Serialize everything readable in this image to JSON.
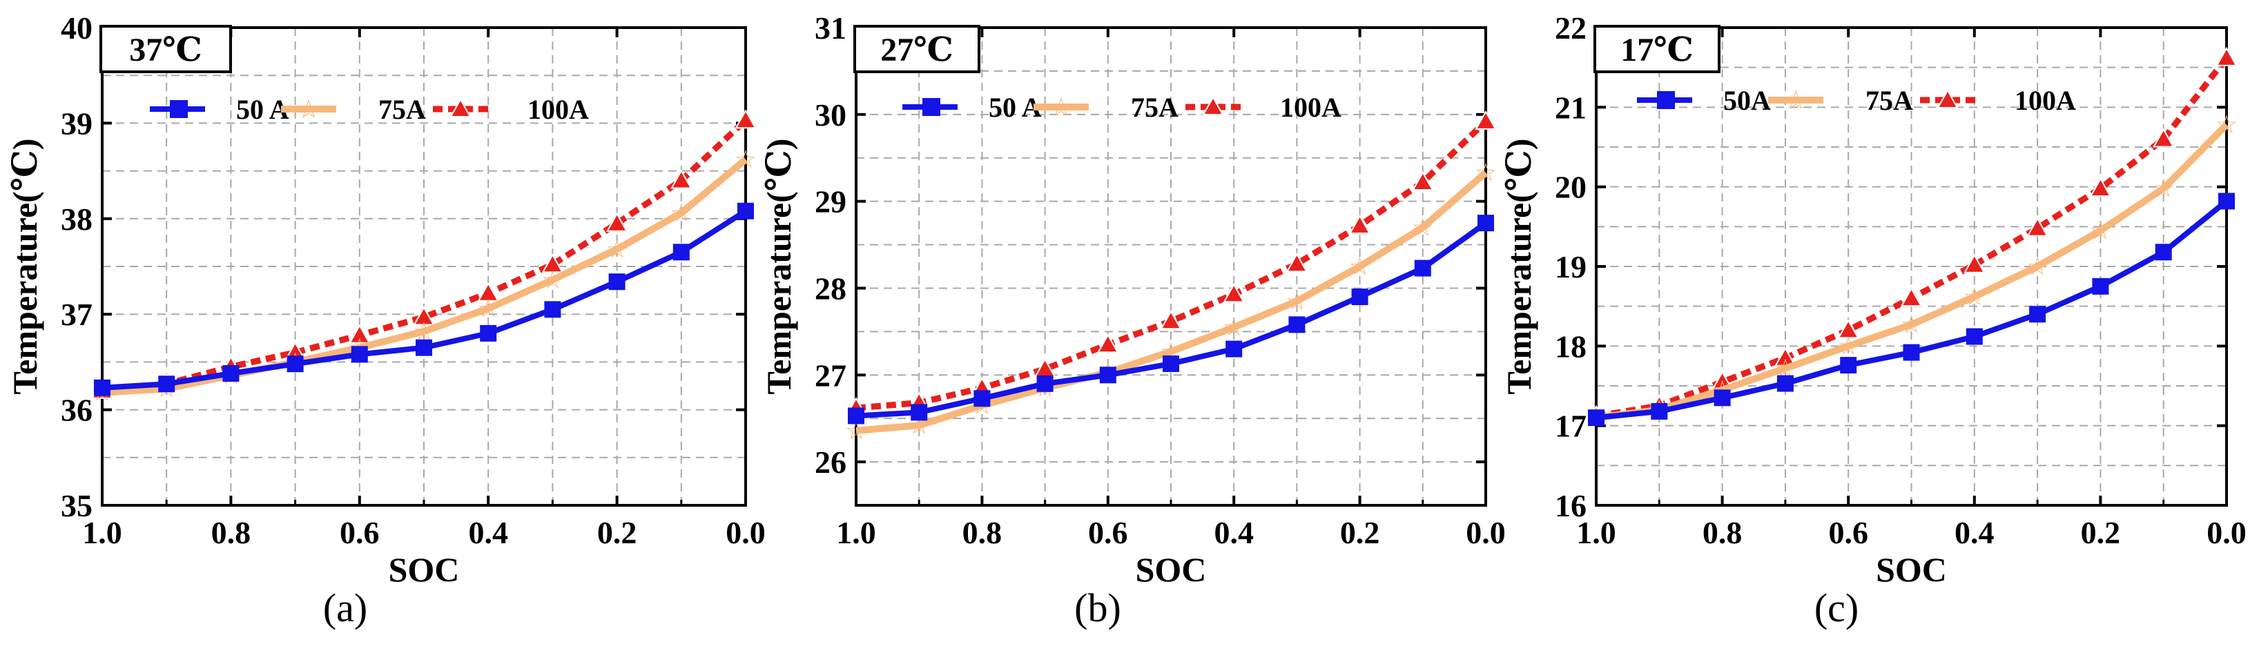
{
  "colors": {
    "s50": "#1414e6",
    "s75": "#f7b77a",
    "s100": "#e8201c"
  },
  "chart_data": [
    {
      "type": "line",
      "panel_label": "(a)",
      "temperature_label": "37℃",
      "xlabel": "SOC",
      "ylabel": "Temperature(℃)",
      "xlim": [
        1.0,
        0.0
      ],
      "ylim": [
        35,
        40
      ],
      "x_ticks": [
        "1.0",
        "0.8",
        "0.6",
        "0.4",
        "0.2",
        "0.0"
      ],
      "y_ticks": [
        "35",
        "36",
        "37",
        "38",
        "39",
        "40"
      ],
      "x": [
        1.0,
        0.9,
        0.8,
        0.7,
        0.6,
        0.5,
        0.4,
        0.3,
        0.2,
        0.1,
        0.0
      ],
      "series": [
        {
          "name": "50 A",
          "values": [
            36.23,
            36.27,
            36.38,
            36.48,
            36.58,
            36.65,
            36.8,
            37.05,
            37.34,
            37.65,
            38.08
          ]
        },
        {
          "name": "75A",
          "values": [
            36.18,
            36.22,
            36.36,
            36.5,
            36.65,
            36.82,
            37.06,
            37.36,
            37.68,
            38.06,
            38.62
          ]
        },
        {
          "name": "100A",
          "values": [
            36.2,
            36.27,
            36.45,
            36.6,
            36.78,
            36.97,
            37.22,
            37.52,
            37.95,
            38.4,
            39.03
          ]
        }
      ]
    },
    {
      "type": "line",
      "panel_label": "(b)",
      "temperature_label": "27℃",
      "xlabel": "SOC",
      "ylabel": "Temperature(℃)",
      "xlim": [
        1.0,
        0.0
      ],
      "ylim": [
        25.5,
        31
      ],
      "x_ticks": [
        "1.0",
        "0.8",
        "0.6",
        "0.4",
        "0.2",
        "0.0"
      ],
      "y_ticks": [
        "26",
        "27",
        "28",
        "29",
        "30",
        "31"
      ],
      "x": [
        1.0,
        0.9,
        0.8,
        0.7,
        0.6,
        0.5,
        0.4,
        0.3,
        0.2,
        0.1,
        0.0
      ],
      "series": [
        {
          "name": "50 A",
          "values": [
            26.53,
            26.57,
            26.73,
            26.9,
            27.0,
            27.13,
            27.3,
            27.58,
            27.9,
            28.23,
            28.75
          ]
        },
        {
          "name": "75A",
          "values": [
            26.36,
            26.42,
            26.65,
            26.85,
            27.03,
            27.27,
            27.55,
            27.85,
            28.25,
            28.7,
            29.33
          ]
        },
        {
          "name": "100A",
          "values": [
            26.62,
            26.68,
            26.85,
            27.07,
            27.35,
            27.62,
            27.93,
            28.28,
            28.72,
            29.22,
            29.92
          ]
        }
      ]
    },
    {
      "type": "line",
      "panel_label": "(c)",
      "temperature_label": "17℃",
      "xlabel": "SOC",
      "ylabel": "Temperature(℃)",
      "xlim": [
        1.0,
        0.0
      ],
      "ylim": [
        16,
        22
      ],
      "x_ticks": [
        "1.0",
        "0.8",
        "0.6",
        "0.4",
        "0.2",
        "0.0"
      ],
      "y_ticks": [
        "16",
        "17",
        "18",
        "19",
        "20",
        "21",
        "22"
      ],
      "x": [
        1.0,
        0.9,
        0.8,
        0.7,
        0.6,
        0.5,
        0.4,
        0.3,
        0.2,
        0.1,
        0.0
      ],
      "series": [
        {
          "name": "50A",
          "values": [
            17.1,
            17.18,
            17.35,
            17.53,
            17.76,
            17.92,
            18.12,
            18.4,
            18.75,
            19.18,
            19.82
          ]
        },
        {
          "name": "75A",
          "values": [
            17.1,
            17.2,
            17.45,
            17.72,
            18.0,
            18.27,
            18.62,
            19.0,
            19.45,
            19.98,
            20.78
          ]
        },
        {
          "name": "100A",
          "values": [
            17.12,
            17.25,
            17.55,
            17.85,
            18.2,
            18.6,
            19.02,
            19.48,
            19.98,
            20.6,
            21.62
          ]
        }
      ]
    }
  ]
}
